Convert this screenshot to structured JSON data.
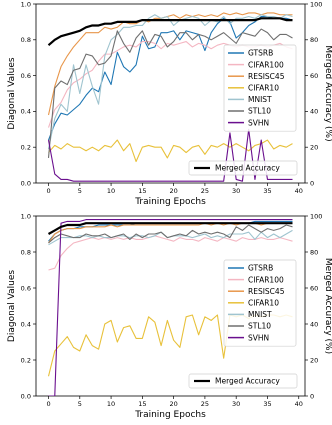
{
  "chart_data": [
    {
      "type": "line",
      "xlabel": "Training Epochs",
      "ylabel": "Diagonal Values",
      "y2label": "Merged Accuracy (%)",
      "xlim": [
        -2,
        41
      ],
      "ylim": [
        0,
        1
      ],
      "y2lim": [
        0,
        100
      ],
      "xticks": [
        0,
        5,
        10,
        15,
        20,
        25,
        30,
        35,
        40
      ],
      "yticks": [
        0.0,
        0.2,
        0.4,
        0.6,
        0.8,
        1.0
      ],
      "y2ticks": [
        0,
        20,
        40,
        60,
        80,
        100
      ],
      "x": [
        0,
        1,
        2,
        3,
        4,
        5,
        6,
        7,
        8,
        9,
        10,
        11,
        12,
        13,
        14,
        15,
        16,
        17,
        18,
        19,
        20,
        21,
        22,
        23,
        24,
        25,
        26,
        27,
        28,
        29,
        30,
        31,
        32,
        33,
        34,
        35,
        36,
        37,
        38,
        39
      ],
      "series": [
        {
          "name": "GTSRB",
          "color": "#1f77b4",
          "values": [
            0.24,
            0.33,
            0.39,
            0.38,
            0.41,
            0.44,
            0.49,
            0.53,
            0.51,
            0.62,
            0.55,
            0.73,
            0.65,
            0.62,
            0.66,
            0.82,
            0.75,
            0.76,
            0.84,
            0.84,
            0.85,
            0.8,
            0.85,
            0.84,
            0.83,
            0.74,
            0.84,
            0.89,
            0.92,
            0.9,
            0.81,
            0.84,
            0.88,
            0.9,
            0.93,
            0.93,
            0.92,
            0.92,
            0.92,
            0.91
          ]
        },
        {
          "name": "CIFAR100",
          "color": "#f4b6c2",
          "values": [
            0.31,
            0.41,
            0.45,
            0.52,
            0.56,
            0.58,
            0.61,
            0.63,
            0.68,
            0.72,
            0.72,
            0.74,
            0.76,
            0.77,
            0.76,
            0.79,
            0.79,
            0.78,
            0.75,
            0.78,
            0.77,
            0.78,
            0.79,
            0.76,
            0.78,
            0.77,
            0.75,
            0.77,
            0.78,
            0.77,
            0.76,
            0.77,
            0.76,
            0.76,
            0.77,
            0.76,
            0.77,
            0.78,
            0.76,
            0.75
          ]
        },
        {
          "name": "RESISC45",
          "color": "#e8964a",
          "values": [
            0.38,
            0.54,
            0.65,
            0.71,
            0.76,
            0.8,
            0.84,
            0.84,
            0.84,
            0.87,
            0.86,
            0.87,
            0.9,
            0.89,
            0.89,
            0.91,
            0.9,
            0.92,
            0.92,
            0.93,
            0.94,
            0.92,
            0.94,
            0.93,
            0.94,
            0.93,
            0.94,
            0.93,
            0.95,
            0.94,
            0.95,
            0.94,
            0.95,
            0.95,
            0.94,
            0.95,
            0.95,
            0.94,
            0.94,
            0.94
          ]
        },
        {
          "name": "CIFAR10",
          "color": "#e8c13a",
          "values": [
            0.17,
            0.21,
            0.19,
            0.22,
            0.2,
            0.2,
            0.18,
            0.2,
            0.18,
            0.21,
            0.2,
            0.24,
            0.18,
            0.22,
            0.12,
            0.2,
            0.21,
            0.2,
            0.2,
            0.14,
            0.21,
            0.2,
            0.17,
            0.2,
            0.21,
            0.16,
            0.21,
            0.2,
            0.22,
            0.2,
            0.22,
            0.2,
            0.18,
            0.21,
            0.22,
            0.24,
            0.19,
            0.21,
            0.2,
            0.22
          ]
        },
        {
          "name": "MNIST",
          "color": "#9fc4cf",
          "values": [
            0.19,
            0.36,
            0.44,
            0.4,
            0.66,
            0.5,
            0.66,
            0.54,
            0.44,
            0.71,
            0.8,
            0.83,
            0.87,
            0.87,
            0.88,
            0.88,
            0.92,
            0.94,
            0.92,
            0.93,
            0.88,
            0.91,
            0.92,
            0.93,
            0.92,
            0.88,
            0.91,
            0.9,
            0.93,
            0.89,
            0.92,
            0.92,
            0.93,
            0.92,
            0.94,
            0.93,
            0.93,
            0.92,
            0.94,
            0.93
          ]
        },
        {
          "name": "STL10",
          "color": "#6f6f6f",
          "values": [
            0.14,
            0.53,
            0.57,
            0.55,
            0.63,
            0.64,
            0.72,
            0.71,
            0.66,
            0.67,
            0.71,
            0.85,
            0.78,
            0.73,
            0.81,
            0.85,
            0.77,
            0.83,
            0.82,
            0.76,
            0.79,
            0.84,
            0.84,
            0.8,
            0.83,
            0.82,
            0.8,
            0.82,
            0.84,
            0.81,
            0.78,
            0.84,
            0.83,
            0.82,
            0.86,
            0.84,
            0.8,
            0.83,
            0.83,
            0.81
          ]
        },
        {
          "name": "SVHN",
          "color": "#6a0f8e",
          "values": [
            0.24,
            0.05,
            0.02,
            0.02,
            0.01,
            0.01,
            0.01,
            0.01,
            0.01,
            0.01,
            0.01,
            0.01,
            0.01,
            0.01,
            0.01,
            0.01,
            0.01,
            0.01,
            0.01,
            0.01,
            0.01,
            0.01,
            0.01,
            0.01,
            0.01,
            0.01,
            0.01,
            0.01,
            0.01,
            0.28,
            0.02,
            0.01,
            0.3,
            0.02,
            0.24,
            0.02,
            0.02,
            0.02,
            0.02,
            0.02
          ]
        }
      ],
      "merged_accuracy": {
        "name": "Merged Accuracy",
        "color": "#000000",
        "values": [
          77,
          80,
          82,
          83,
          84,
          85,
          87,
          88,
          88,
          89,
          89,
          90,
          90,
          90,
          90,
          91,
          91,
          91,
          91,
          91,
          91,
          91,
          91,
          91,
          91,
          91,
          91,
          91,
          91,
          91,
          91,
          91,
          91,
          91,
          92,
          92,
          92,
          92,
          91,
          91
        ]
      }
    },
    {
      "type": "line",
      "xlabel": "Training Epochs",
      "ylabel": "Diagonal Values",
      "y2label": "Merged Accuracy (%)",
      "xlim": [
        -2,
        41
      ],
      "ylim": [
        0,
        1
      ],
      "y2lim": [
        0,
        100
      ],
      "xticks": [
        0,
        5,
        10,
        15,
        20,
        25,
        30,
        35,
        40
      ],
      "yticks": [
        0.0,
        0.2,
        0.4,
        0.6,
        0.8,
        1.0
      ],
      "y2ticks": [
        0,
        20,
        40,
        60,
        80,
        100
      ],
      "x": [
        0,
        1,
        2,
        3,
        4,
        5,
        6,
        7,
        8,
        9,
        10,
        11,
        12,
        13,
        14,
        15,
        16,
        17,
        18,
        19,
        20,
        21,
        22,
        23,
        24,
        25,
        26,
        27,
        28,
        29,
        30,
        31,
        32,
        33,
        34,
        35,
        36,
        37,
        38,
        39
      ],
      "series": [
        {
          "name": "GTSRB",
          "color": "#1f77b4",
          "values": [
            0.86,
            0.9,
            0.92,
            0.93,
            0.93,
            0.94,
            0.94,
            0.94,
            0.95,
            0.95,
            0.95,
            0.95,
            0.95,
            0.95,
            0.96,
            0.96,
            0.96,
            0.96,
            0.96,
            0.96,
            0.96,
            0.96,
            0.96,
            0.96,
            0.96,
            0.96,
            0.96,
            0.96,
            0.96,
            0.96,
            0.96,
            0.96,
            0.96,
            0.97,
            0.97,
            0.97,
            0.97,
            0.97,
            0.97,
            0.97
          ]
        },
        {
          "name": "CIFAR100",
          "color": "#f4b6c2",
          "values": [
            0.7,
            0.71,
            0.78,
            0.82,
            0.85,
            0.86,
            0.87,
            0.88,
            0.87,
            0.88,
            0.87,
            0.88,
            0.87,
            0.88,
            0.87,
            0.87,
            0.88,
            0.89,
            0.88,
            0.87,
            0.86,
            0.88,
            0.87,
            0.87,
            0.86,
            0.88,
            0.87,
            0.86,
            0.88,
            0.87,
            0.86,
            0.88,
            0.87,
            0.87,
            0.88,
            0.87,
            0.87,
            0.88,
            0.87,
            0.86
          ]
        },
        {
          "name": "RESISC45",
          "color": "#e8964a",
          "values": [
            0.85,
            0.9,
            0.92,
            0.93,
            0.93,
            0.93,
            0.94,
            0.94,
            0.94,
            0.94,
            0.95,
            0.94,
            0.95,
            0.95,
            0.95,
            0.95,
            0.95,
            0.95,
            0.95,
            0.95,
            0.95,
            0.95,
            0.95,
            0.95,
            0.95,
            0.96,
            0.95,
            0.96,
            0.95,
            0.96,
            0.95,
            0.96,
            0.96,
            0.96,
            0.95,
            0.96,
            0.96,
            0.96,
            0.96,
            0.96
          ]
        },
        {
          "name": "CIFAR10",
          "color": "#e8c13a",
          "values": [
            0.11,
            0.25,
            0.29,
            0.33,
            0.27,
            0.25,
            0.34,
            0.28,
            0.26,
            0.4,
            0.42,
            0.3,
            0.38,
            0.39,
            0.32,
            0.32,
            0.44,
            0.41,
            0.28,
            0.42,
            0.31,
            0.27,
            0.44,
            0.45,
            0.34,
            0.44,
            0.42,
            0.45,
            0.21,
            0.45,
            0.44,
            0.45,
            0.43,
            0.45,
            0.44,
            0.45,
            0.45,
            0.44,
            0.45,
            0.44
          ]
        },
        {
          "name": "MNIST",
          "color": "#9fc4cf",
          "values": [
            0.84,
            0.86,
            0.88,
            0.88,
            0.88,
            0.89,
            0.89,
            0.88,
            0.89,
            0.88,
            0.88,
            0.89,
            0.89,
            0.88,
            0.89,
            0.89,
            0.88,
            0.89,
            0.91,
            0.88,
            0.89,
            0.89,
            0.89,
            0.88,
            0.89,
            0.9,
            0.88,
            0.89,
            0.88,
            0.9,
            0.9,
            0.9,
            0.91,
            0.87,
            0.91,
            0.88,
            0.9,
            0.88,
            0.9,
            0.92
          ]
        },
        {
          "name": "STL10",
          "color": "#6f6f6f",
          "values": [
            0.85,
            0.88,
            0.9,
            0.89,
            0.88,
            0.88,
            0.9,
            0.89,
            0.89,
            0.9,
            0.88,
            0.89,
            0.9,
            0.87,
            0.9,
            0.88,
            0.9,
            0.9,
            0.91,
            0.88,
            0.89,
            0.9,
            0.89,
            0.92,
            0.9,
            0.91,
            0.9,
            0.91,
            0.9,
            0.88,
            0.94,
            0.92,
            0.95,
            0.93,
            0.91,
            0.93,
            0.92,
            0.93,
            0.95,
            0.94
          ]
        },
        {
          "name": "SVHN",
          "color": "#6a0f8e",
          "values": [
            0.0,
            0.0,
            0.96,
            0.97,
            0.97,
            0.97,
            0.98,
            0.98,
            0.98,
            0.98,
            0.98,
            0.98,
            0.98,
            0.98,
            0.98,
            0.98,
            0.98,
            0.98,
            0.98,
            0.98,
            0.98,
            0.98,
            0.98,
            0.98,
            0.98,
            0.98,
            0.98,
            0.98,
            0.98,
            0.98,
            0.98,
            0.98,
            0.98,
            0.98,
            0.98,
            0.98,
            0.98,
            0.98,
            0.98,
            0.98
          ]
        }
      ],
      "merged_accuracy": {
        "name": "Merged Accuracy",
        "color": "#000000",
        "values": [
          90,
          92,
          94,
          95,
          95,
          95,
          96,
          96,
          96,
          96,
          96,
          96,
          96,
          96,
          96,
          96,
          96,
          96,
          96,
          96,
          96,
          96,
          96,
          96,
          96,
          96,
          96,
          96,
          96,
          96,
          96,
          96,
          96,
          96,
          96,
          96,
          96,
          96,
          96,
          96
        ]
      }
    }
  ]
}
